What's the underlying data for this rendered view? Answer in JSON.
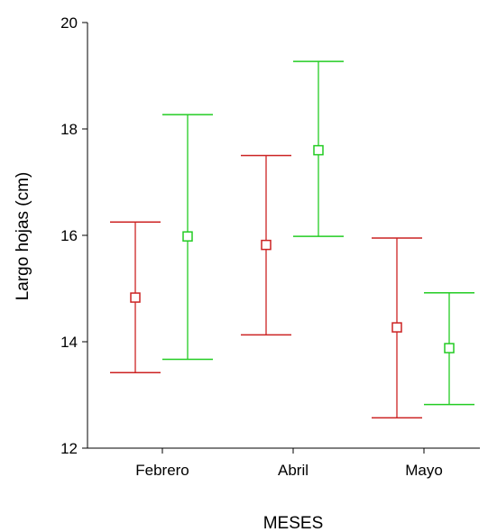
{
  "chart_data": {
    "type": "errorbar",
    "xlabel": "MESES",
    "ylabel": "Largo hojas (cm)",
    "categories": [
      "Febrero",
      "Abril",
      "Mayo"
    ],
    "ylim": [
      12,
      20
    ],
    "yticks": [
      "12",
      "14",
      "16",
      "18",
      "20"
    ],
    "series": [
      {
        "color": "#cc2222",
        "mean": [
          14.83,
          15.82,
          14.27
        ],
        "lower": [
          13.42,
          14.13,
          12.57
        ],
        "upper": [
          16.25,
          17.5,
          15.95
        ]
      },
      {
        "color": "#22cc22",
        "mean": [
          15.98,
          17.6,
          13.88
        ],
        "lower": [
          13.67,
          15.98,
          12.82
        ],
        "upper": [
          18.27,
          19.27,
          14.92
        ]
      }
    ],
    "grid": false,
    "legend": "none"
  }
}
